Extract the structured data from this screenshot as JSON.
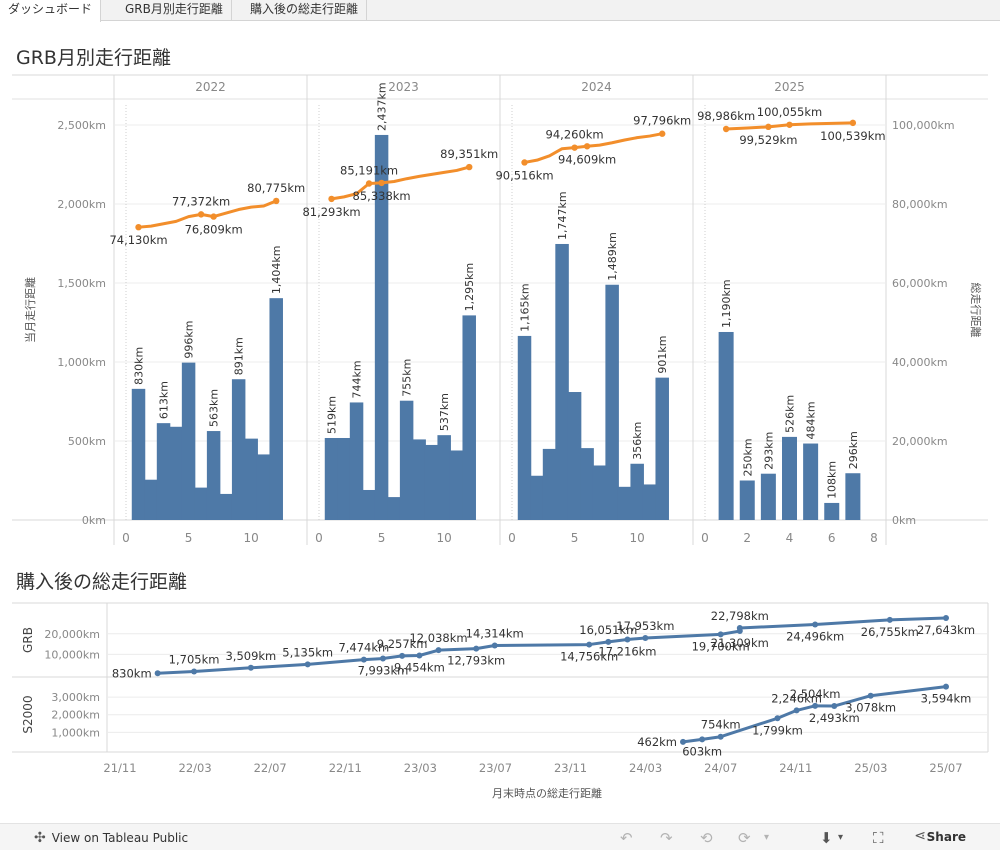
{
  "tabs": [
    {
      "label": "ダッシュボード",
      "active": true
    },
    {
      "label": "GRB月別走行距離",
      "active": false
    },
    {
      "label": "購入後の総走行距離",
      "active": false
    }
  ],
  "top_title": "GRB月別走行距離",
  "bottom_title": "購入後の総走行距離",
  "footer": {
    "view_label": "View on Tableau Public",
    "share_label": "Share"
  },
  "colors": {
    "bar": "#4e79a7",
    "line": "#f28e2b",
    "grid": "#ececec",
    "axis_text": "#888888"
  },
  "chart_data": [
    {
      "type": "bar",
      "title": "GRB月別走行距離",
      "ylabel": "当月走行距離",
      "y2label": "総走行距離",
      "ylim": [
        0,
        2500
      ],
      "y2lim": [
        0,
        100000
      ],
      "yticks": [
        "0km",
        "500km",
        "1,000km",
        "1,500km",
        "2,000km",
        "2,500km"
      ],
      "y2ticks": [
        "0km",
        "20,000km",
        "40,000km",
        "60,000km",
        "80,000km",
        "100,000km"
      ],
      "panels": [
        {
          "year": "2022",
          "x_ticks": [
            "0",
            "5",
            "10"
          ],
          "bars": [
            {
              "m": 1,
              "v": 830,
              "label": "830km"
            },
            {
              "m": 2,
              "v": 255,
              "label": ""
            },
            {
              "m": 3,
              "v": 613,
              "label": "613km"
            },
            {
              "m": 4,
              "v": 590,
              "label": ""
            },
            {
              "m": 5,
              "v": 996,
              "label": "996km"
            },
            {
              "m": 6,
              "v": 205,
              "label": ""
            },
            {
              "m": 7,
              "v": 563,
              "label": "563km"
            },
            {
              "m": 8,
              "v": 165,
              "label": ""
            },
            {
              "m": 9,
              "v": 891,
              "label": "891km"
            },
            {
              "m": 10,
              "v": 515,
              "label": ""
            },
            {
              "m": 11,
              "v": 415,
              "label": ""
            },
            {
              "m": 12,
              "v": 1404,
              "label": "1,404km"
            }
          ],
          "line": [
            {
              "m": 1,
              "v": 74130,
              "label": "74,130km",
              "pos": "below"
            },
            {
              "m": 2,
              "v": 74400,
              "label": ""
            },
            {
              "m": 3,
              "v": 75000,
              "label": ""
            },
            {
              "m": 4,
              "v": 75600,
              "label": ""
            },
            {
              "m": 5,
              "v": 76800,
              "label": ""
            },
            {
              "m": 6,
              "v": 77372,
              "label": "77,372km",
              "pos": "above"
            },
            {
              "m": 7,
              "v": 76809,
              "label": "76,809km",
              "pos": "below"
            },
            {
              "m": 8,
              "v": 77700,
              "label": ""
            },
            {
              "m": 9,
              "v": 78600,
              "label": ""
            },
            {
              "m": 10,
              "v": 79200,
              "label": ""
            },
            {
              "m": 11,
              "v": 79500,
              "label": ""
            },
            {
              "m": 12,
              "v": 80775,
              "label": "80,775km",
              "pos": "above"
            }
          ]
        },
        {
          "year": "2023",
          "x_ticks": [
            "0",
            "5",
            "10"
          ],
          "bars": [
            {
              "m": 1,
              "v": 519,
              "label": "519km"
            },
            {
              "m": 2,
              "v": 519,
              "label": ""
            },
            {
              "m": 3,
              "v": 744,
              "label": "744km"
            },
            {
              "m": 4,
              "v": 190,
              "label": ""
            },
            {
              "m": 5,
              "v": 2437,
              "label": "2,437km"
            },
            {
              "m": 6,
              "v": 145,
              "label": ""
            },
            {
              "m": 7,
              "v": 755,
              "label": "755km"
            },
            {
              "m": 8,
              "v": 510,
              "label": ""
            },
            {
              "m": 9,
              "v": 475,
              "label": ""
            },
            {
              "m": 10,
              "v": 537,
              "label": "537km"
            },
            {
              "m": 11,
              "v": 440,
              "label": ""
            },
            {
              "m": 12,
              "v": 1295,
              "label": "1,295km"
            }
          ],
          "line": [
            {
              "m": 1,
              "v": 81293,
              "label": "81,293km",
              "pos": "below"
            },
            {
              "m": 2,
              "v": 81800,
              "label": ""
            },
            {
              "m": 3,
              "v": 82600,
              "label": ""
            },
            {
              "m": 4,
              "v": 85191,
              "label": "85,191km",
              "pos": "above"
            },
            {
              "m": 5,
              "v": 85338,
              "label": "85,338km",
              "pos": "below"
            },
            {
              "m": 6,
              "v": 85700,
              "label": ""
            },
            {
              "m": 7,
              "v": 86400,
              "label": ""
            },
            {
              "m": 8,
              "v": 87000,
              "label": ""
            },
            {
              "m": 9,
              "v": 87500,
              "label": ""
            },
            {
              "m": 10,
              "v": 88000,
              "label": ""
            },
            {
              "m": 11,
              "v": 88500,
              "label": ""
            },
            {
              "m": 12,
              "v": 89351,
              "label": "89,351km",
              "pos": "above"
            }
          ]
        },
        {
          "year": "2024",
          "x_ticks": [
            "0",
            "5",
            "10"
          ],
          "bars": [
            {
              "m": 1,
              "v": 1165,
              "label": "1,165km"
            },
            {
              "m": 2,
              "v": 280,
              "label": ""
            },
            {
              "m": 3,
              "v": 450,
              "label": ""
            },
            {
              "m": 4,
              "v": 1747,
              "label": "1,747km"
            },
            {
              "m": 5,
              "v": 810,
              "label": ""
            },
            {
              "m": 6,
              "v": 455,
              "label": ""
            },
            {
              "m": 7,
              "v": 345,
              "label": ""
            },
            {
              "m": 8,
              "v": 1489,
              "label": "1,489km"
            },
            {
              "m": 9,
              "v": 210,
              "label": ""
            },
            {
              "m": 10,
              "v": 356,
              "label": "356km"
            },
            {
              "m": 11,
              "v": 225,
              "label": ""
            },
            {
              "m": 12,
              "v": 901,
              "label": "901km"
            }
          ],
          "line": [
            {
              "m": 1,
              "v": 90516,
              "label": "90,516km",
              "pos": "below"
            },
            {
              "m": 2,
              "v": 91100,
              "label": ""
            },
            {
              "m": 3,
              "v": 92200,
              "label": ""
            },
            {
              "m": 4,
              "v": 94000,
              "label": ""
            },
            {
              "m": 5,
              "v": 94260,
              "label": "94,260km",
              "pos": "above"
            },
            {
              "m": 6,
              "v": 94609,
              "label": "94,609km",
              "pos": "below"
            },
            {
              "m": 7,
              "v": 94900,
              "label": ""
            },
            {
              "m": 8,
              "v": 95500,
              "label": ""
            },
            {
              "m": 9,
              "v": 96200,
              "label": ""
            },
            {
              "m": 10,
              "v": 96800,
              "label": ""
            },
            {
              "m": 11,
              "v": 97200,
              "label": ""
            },
            {
              "m": 12,
              "v": 97796,
              "label": "97,796km",
              "pos": "above"
            }
          ]
        },
        {
          "year": "2025",
          "x_ticks": [
            "0",
            "2",
            "4",
            "6",
            "8"
          ],
          "bars": [
            {
              "m": 1,
              "v": 1190,
              "label": "1,190km"
            },
            {
              "m": 2,
              "v": 250,
              "label": "250km"
            },
            {
              "m": 3,
              "v": 293,
              "label": "293km"
            },
            {
              "m": 4,
              "v": 526,
              "label": "526km"
            },
            {
              "m": 5,
              "v": 484,
              "label": "484km"
            },
            {
              "m": 6,
              "v": 108,
              "label": "108km"
            },
            {
              "m": 7,
              "v": 296,
              "label": "296km"
            }
          ],
          "line": [
            {
              "m": 1,
              "v": 98986,
              "label": "98,986km",
              "pos": "above"
            },
            {
              "m": 2,
              "v": 99250,
              "label": ""
            },
            {
              "m": 3,
              "v": 99529,
              "label": "99,529km",
              "pos": "below"
            },
            {
              "m": 4,
              "v": 100055,
              "label": "100,055km",
              "pos": "above"
            },
            {
              "m": 5,
              "v": 100300,
              "label": ""
            },
            {
              "m": 7,
              "v": 100539,
              "label": "100,539km",
              "pos": "below"
            }
          ]
        }
      ]
    },
    {
      "type": "line",
      "title": "購入後の総走行距離",
      "xlabel": "月末時点の総走行距離",
      "x_ticks": [
        "21/11",
        "22/03",
        "22/07",
        "22/11",
        "23/03",
        "23/07",
        "23/11",
        "24/03",
        "24/07",
        "24/11",
        "25/03",
        "25/07"
      ],
      "series": [
        {
          "name": "GRB",
          "yticks": [
            "10,000km",
            "20,000km"
          ],
          "ylim": [
            0,
            32000
          ],
          "points": [
            {
              "x": "2022-01",
              "v": 830,
              "label": "830km",
              "pos": "left"
            },
            {
              "x": "2022-03",
              "v": 1705,
              "label": "1,705km",
              "pos": "above"
            },
            {
              "x": "2022-06",
              "v": 3509,
              "label": "3,509km",
              "pos": "above"
            },
            {
              "x": "2022-09",
              "v": 5135,
              "label": "5,135km",
              "pos": "above"
            },
            {
              "x": "2022-12",
              "v": 7474,
              "label": "7,474km",
              "pos": "above"
            },
            {
              "x": "2023-01",
              "v": 7993,
              "label": "7,993km",
              "pos": "below"
            },
            {
              "x": "2023-02",
              "v": 9257,
              "label": "9,257km",
              "pos": "above"
            },
            {
              "x": "2023-03",
              "v": 9454,
              "label": "9,454km",
              "pos": "below"
            },
            {
              "x": "2023-04",
              "v": 12038,
              "label": "12,038km",
              "pos": "above"
            },
            {
              "x": "2023-06",
              "v": 12793,
              "label": "12,793km",
              "pos": "below"
            },
            {
              "x": "2023-07",
              "v": 14314,
              "label": "14,314km",
              "pos": "above"
            },
            {
              "x": "2023-12",
              "v": 14756,
              "label": "14,756km",
              "pos": "below"
            },
            {
              "x": "2024-01",
              "v": 16051,
              "label": "16,051km",
              "pos": "above"
            },
            {
              "x": "2024-02",
              "v": 17216,
              "label": "17,216km",
              "pos": "below"
            },
            {
              "x": "2024-03",
              "v": 17953,
              "label": "17,953km",
              "pos": "above"
            },
            {
              "x": "2024-07",
              "v": 19700,
              "label": "19,700km",
              "pos": "below"
            },
            {
              "x": "2024-08",
              "v": 21309,
              "label": "21,309km",
              "pos": "below"
            },
            {
              "x": "2024-08",
              "v": 22798,
              "label": "22,798km",
              "pos": "above"
            },
            {
              "x": "2024-12",
              "v": 24496,
              "label": "24,496km",
              "pos": "below"
            },
            {
              "x": "2025-04",
              "v": 26755,
              "label": "26,755km",
              "pos": "below"
            },
            {
              "x": "2025-07",
              "v": 27643,
              "label": "27,643km",
              "pos": "below"
            }
          ]
        },
        {
          "name": "S2000",
          "yticks": [
            "1,000km",
            "2,000km",
            "3,000km"
          ],
          "ylim": [
            0,
            3800
          ],
          "points": [
            {
              "x": "2024-05",
              "v": 462,
              "label": "462km",
              "pos": "left"
            },
            {
              "x": "2024-06",
              "v": 603,
              "label": "603km",
              "pos": "below"
            },
            {
              "x": "2024-07",
              "v": 754,
              "label": "754km",
              "pos": "above"
            },
            {
              "x": "2024-10",
              "v": 1799,
              "label": "1,799km",
              "pos": "below"
            },
            {
              "x": "2024-11",
              "v": 2246,
              "label": "2,246km",
              "pos": "above"
            },
            {
              "x": "2024-12",
              "v": 2504,
              "label": "2,504km",
              "pos": "above"
            },
            {
              "x": "2025-01",
              "v": 2493,
              "label": "2,493km",
              "pos": "below"
            },
            {
              "x": "2025-03",
              "v": 3078,
              "label": "3,078km",
              "pos": "below"
            },
            {
              "x": "2025-07",
              "v": 3594,
              "label": "3,594km",
              "pos": "below"
            }
          ]
        }
      ]
    }
  ]
}
